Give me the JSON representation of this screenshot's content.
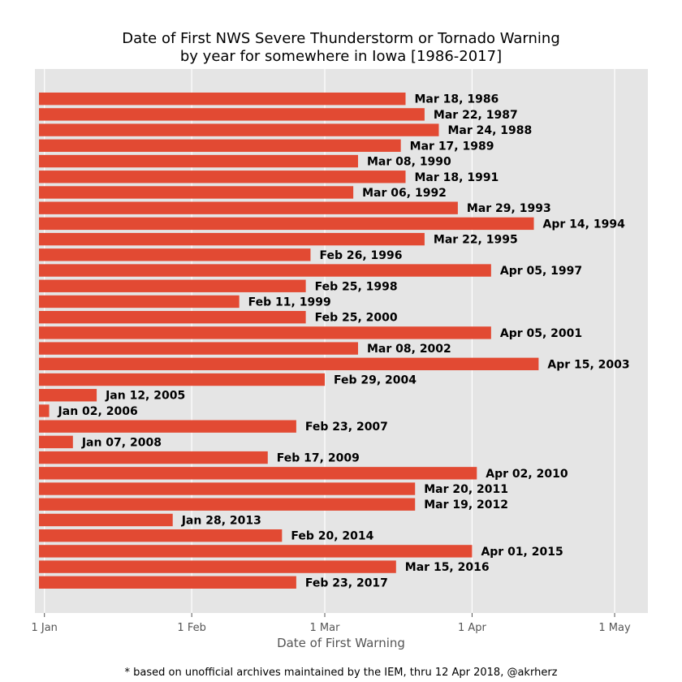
{
  "chart_data": {
    "type": "bar",
    "orientation": "horizontal",
    "title_line1": "Date of First NWS Severe Thunderstorm or Tornado Warning",
    "title_line2": "by year for somewhere in Iowa [1986-2017]",
    "xlabel": "Date of First Warning",
    "footnote": "* based on unofficial archives maintained by the IEM, thru 12 Apr 2018, @akrherz",
    "x_ticks": [
      {
        "label": "1 Jan",
        "day": 1
      },
      {
        "label": "1 Feb",
        "day": 32
      },
      {
        "label": "1 Mar",
        "day": 60
      },
      {
        "label": "1 Apr",
        "day": 91
      },
      {
        "label": "1 May",
        "day": 121
      }
    ],
    "xlim": [
      -1,
      128
    ],
    "grid": true,
    "bar_color": "#e24a33",
    "background_color": "#e5e5e5",
    "bars": [
      {
        "year": 1986,
        "label": "Mar 18, 1986",
        "day": 77
      },
      {
        "year": 1987,
        "label": "Mar 22, 1987",
        "day": 81
      },
      {
        "year": 1988,
        "label": "Mar 24, 1988",
        "day": 84
      },
      {
        "year": 1989,
        "label": "Mar 17, 1989",
        "day": 76
      },
      {
        "year": 1990,
        "label": "Mar 08, 1990",
        "day": 67
      },
      {
        "year": 1991,
        "label": "Mar 18, 1991",
        "day": 77
      },
      {
        "year": 1992,
        "label": "Mar 06, 1992",
        "day": 66
      },
      {
        "year": 1993,
        "label": "Mar 29, 1993",
        "day": 88
      },
      {
        "year": 1994,
        "label": "Apr 14, 1994",
        "day": 104
      },
      {
        "year": 1995,
        "label": "Mar 22, 1995",
        "day": 81
      },
      {
        "year": 1996,
        "label": "Feb 26, 1996",
        "day": 57
      },
      {
        "year": 1997,
        "label": "Apr 05, 1997",
        "day": 95
      },
      {
        "year": 1998,
        "label": "Feb 25, 1998",
        "day": 56
      },
      {
        "year": 1999,
        "label": "Feb 11, 1999",
        "day": 42
      },
      {
        "year": 2000,
        "label": "Feb 25, 2000",
        "day": 56
      },
      {
        "year": 2001,
        "label": "Apr 05, 2001",
        "day": 95
      },
      {
        "year": 2002,
        "label": "Mar 08, 2002",
        "day": 67
      },
      {
        "year": 2003,
        "label": "Apr 15, 2003",
        "day": 105
      },
      {
        "year": 2004,
        "label": "Feb 29, 2004",
        "day": 60
      },
      {
        "year": 2005,
        "label": "Jan 12, 2005",
        "day": 12
      },
      {
        "year": 2006,
        "label": "Jan 02, 2006",
        "day": 2
      },
      {
        "year": 2007,
        "label": "Feb 23, 2007",
        "day": 54
      },
      {
        "year": 2008,
        "label": "Jan 07, 2008",
        "day": 7
      },
      {
        "year": 2009,
        "label": "Feb 17, 2009",
        "day": 48
      },
      {
        "year": 2010,
        "label": "Apr 02, 2010",
        "day": 92
      },
      {
        "year": 2011,
        "label": "Mar 20, 2011",
        "day": 79
      },
      {
        "year": 2012,
        "label": "Mar 19, 2012",
        "day": 79
      },
      {
        "year": 2013,
        "label": "Jan 28, 2013",
        "day": 28
      },
      {
        "year": 2014,
        "label": "Feb 20, 2014",
        "day": 51
      },
      {
        "year": 2015,
        "label": "Apr 01, 2015",
        "day": 91
      },
      {
        "year": 2016,
        "label": "Mar 15, 2016",
        "day": 75
      },
      {
        "year": 2017,
        "label": "Feb 23, 2017",
        "day": 54
      }
    ]
  }
}
